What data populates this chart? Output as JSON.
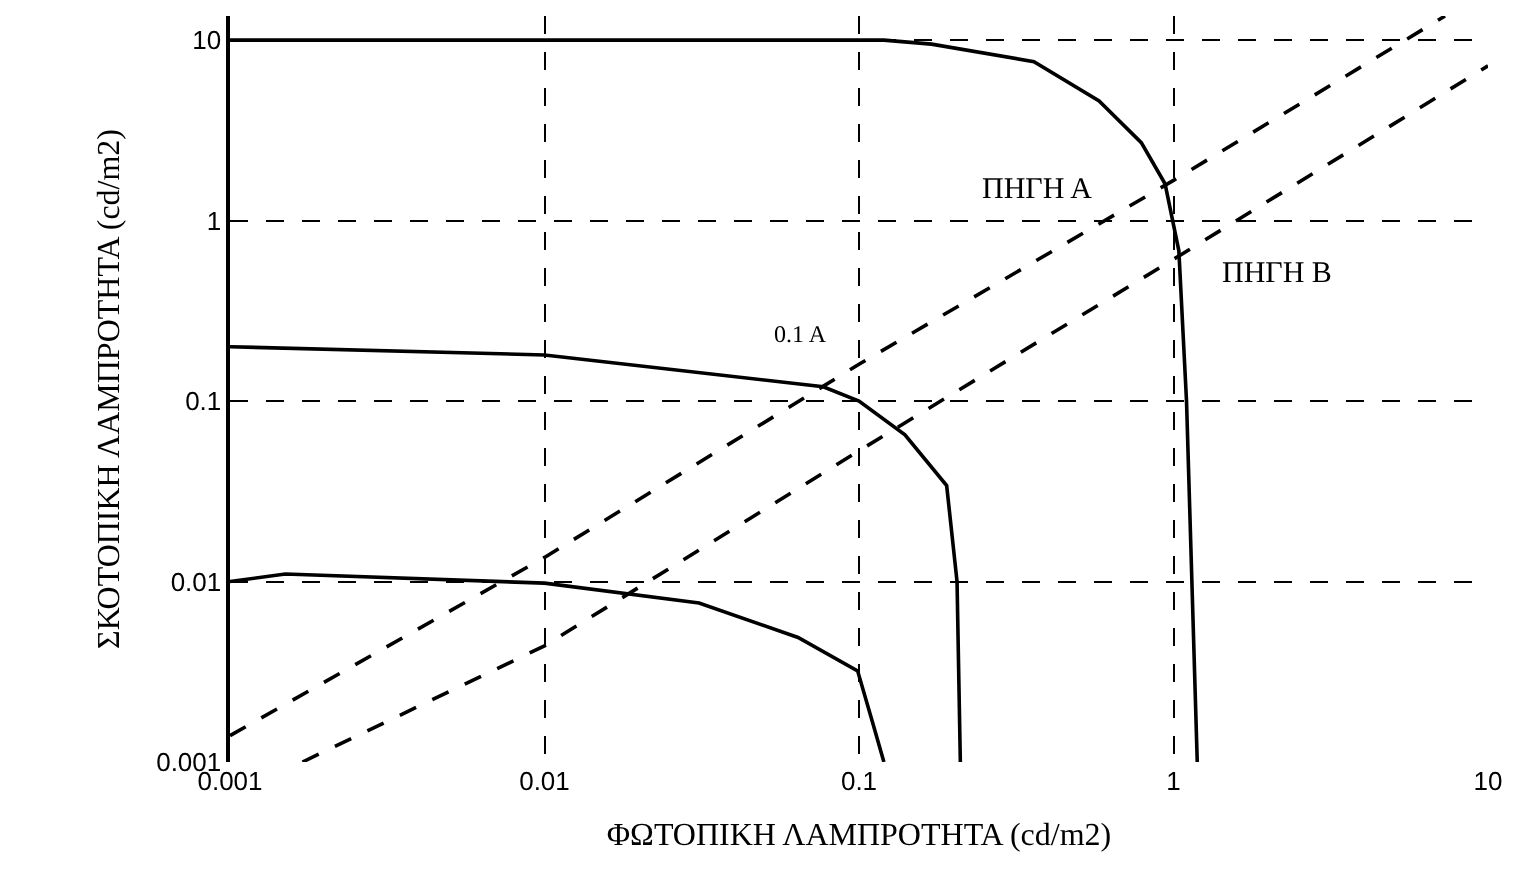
{
  "chart_data": {
    "type": "line",
    "xlabel": "ΦΩΤΟΠΙΚΗ ΛΑΜΠΡΟΤΗΤΑ (cd/m2)",
    "ylabel": "ΣΚΟΤΟΠΙΚΗ ΛΑΜΠΡΟΤΗΤΑ (cd/m2)",
    "log": "xy",
    "xlim": [
      0.001,
      10
    ],
    "ylim": [
      0.001,
      13.6
    ],
    "xticks": [
      0.001,
      0.01,
      0.1,
      1,
      10
    ],
    "yticks": [
      0.001,
      0.01,
      0.1,
      1,
      10
    ],
    "grid": true,
    "marker": "none",
    "series": [
      {
        "color": "#000000",
        "line_style": "solid",
        "x": [
          0.001,
          0.12,
          0.17,
          0.36,
          0.58,
          0.79,
          0.94,
          1.04,
          1.1,
          1.19
        ],
        "values": [
          10,
          10,
          9.5,
          7.6,
          4.6,
          2.7,
          1.6,
          0.68,
          0.1,
          0.001
        ]
      },
      {
        "color": "#000000",
        "line_style": "solid",
        "x": [
          0.001,
          0.01,
          0.077,
          0.1,
          0.14,
          0.19,
          0.205,
          0.21
        ],
        "values": [
          0.2,
          0.18,
          0.12,
          0.1,
          0.065,
          0.034,
          0.01,
          0.001
        ]
      },
      {
        "color": "#000000",
        "line_style": "solid",
        "x": [
          0.001,
          0.0015,
          0.01,
          0.031,
          0.064,
          0.099,
          0.11,
          0.12
        ],
        "values": [
          0.01,
          0.011,
          0.0098,
          0.0076,
          0.0049,
          0.0032,
          0.0017,
          0.001
        ]
      },
      {
        "color": "#000000",
        "line_style": "dashed",
        "x": [
          0.001,
          0.01,
          0.1,
          1,
          7.3
        ],
        "values": [
          0.0014,
          0.0136,
          0.16,
          1.67,
          13.6
        ]
      },
      {
        "color": "#000000",
        "line_style": "dashed",
        "x": [
          0.0017,
          0.01,
          0.1,
          1,
          10
        ],
        "values": [
          0.001,
          0.0044,
          0.053,
          0.61,
          7.2
        ]
      }
    ],
    "annotations": [
      "ΠΗΓΗ Α",
      "ΠΗΓΗ Β",
      "0.1 Α"
    ]
  }
}
